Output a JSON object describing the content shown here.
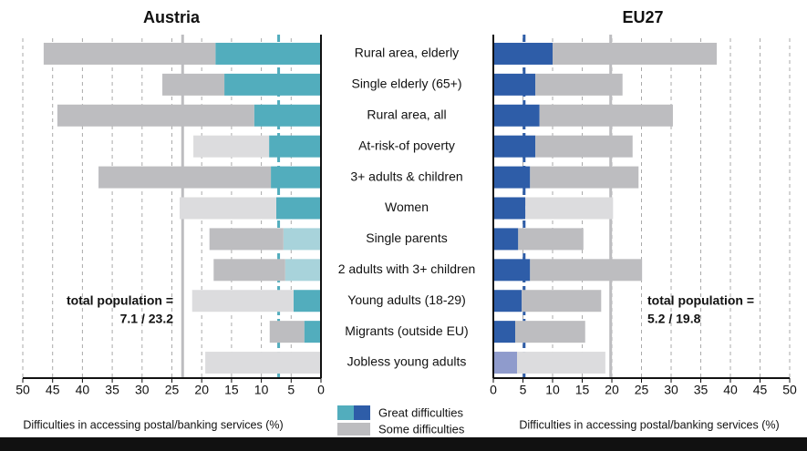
{
  "chart_data": [
    {
      "type": "bar",
      "orientation": "horizontal",
      "stacked": true,
      "title": "Austria",
      "x_reversed": true,
      "xlabel": "Difficulties in accessing postal/banking services (%)",
      "categories": [
        "Rural area, elderly",
        "Single elderly (65+)",
        "Rural area, all",
        "At-risk-of poverty",
        "3+ adults & children",
        "Women",
        "Single parents",
        "2 adults with 3+ children",
        "Young adults (18-29)",
        "Migrants (outside EU)",
        "Jobless young adults"
      ],
      "series": [
        {
          "name": "Great difficulties",
          "color": "#52adbd",
          "colors": [
            "#52adbd",
            "#52adbd",
            "#52adbd",
            "#52adbd",
            "#52adbd",
            "#52adbd",
            "#a8d3db",
            "#a8d3db",
            "#52adbd",
            "#52adbd",
            "#52adbd"
          ],
          "values": [
            17.7,
            16.2,
            11.2,
            8.7,
            8.4,
            7.5,
            6.3,
            6.0,
            4.6,
            2.8,
            0
          ]
        },
        {
          "name": "Some difficulties",
          "color": "#bdbdc0",
          "colors": [
            "#bdbdc0",
            "#bdbdc0",
            "#bdbdc0",
            "#dcdcde",
            "#bdbdc0",
            "#dcdcde",
            "#bdbdc0",
            "#bdbdc0",
            "#dcdcde",
            "#bdbdc0",
            "#dcdcde"
          ],
          "values": [
            28.8,
            10.4,
            33.0,
            12.7,
            28.9,
            16.2,
            12.4,
            12.0,
            17.0,
            5.8,
            19.4
          ]
        }
      ],
      "reference_lines": [
        {
          "value": 7.1,
          "color": "#52adbd",
          "dashed": true
        },
        {
          "value": 23.2,
          "color": "#bdbdc0",
          "dashed": false
        }
      ],
      "annotation": [
        "total population =",
        "7.1 / 23.2"
      ],
      "annotation_color": "#52adbd",
      "xlim": [
        0,
        50
      ],
      "xticks": [
        0,
        5,
        10,
        15,
        20,
        25,
        30,
        35,
        40,
        45,
        50
      ],
      "grid": true
    },
    {
      "type": "bar",
      "orientation": "horizontal",
      "stacked": true,
      "title": "EU27",
      "x_reversed": false,
      "xlabel": "Difficulties in accessing postal/banking services (%)",
      "series": [
        {
          "name": "Great difficulties",
          "color": "#2e5da8",
          "colors": [
            "#2e5da8",
            "#2e5da8",
            "#2e5da8",
            "#2e5da8",
            "#2e5da8",
            "#2e5da8",
            "#2e5da8",
            "#2e5da8",
            "#2e5da8",
            "#2e5da8",
            "#8f9bcc"
          ],
          "values": [
            10.0,
            7.1,
            7.8,
            7.1,
            6.2,
            5.4,
            4.2,
            6.2,
            4.8,
            3.7,
            4.0
          ]
        },
        {
          "name": "Some difficulties",
          "color": "#bdbdc0",
          "colors": [
            "#bdbdc0",
            "#bdbdc0",
            "#bdbdc0",
            "#bdbdc0",
            "#bdbdc0",
            "#dcdcde",
            "#bdbdc0",
            "#bdbdc0",
            "#bdbdc0",
            "#bdbdc0",
            "#dcdcde"
          ],
          "values": [
            27.7,
            14.7,
            22.5,
            16.4,
            18.3,
            14.8,
            11.0,
            18.9,
            13.4,
            11.8,
            14.9
          ]
        }
      ],
      "reference_lines": [
        {
          "value": 5.2,
          "color": "#2e5da8",
          "dashed": true
        },
        {
          "value": 19.8,
          "color": "#bdbdc0",
          "dashed": false
        }
      ],
      "annotation": [
        "total population =",
        "5.2 / 19.8"
      ],
      "annotation_color": "#2e5da8",
      "xlim": [
        0,
        50
      ],
      "xticks": [
        0,
        5,
        10,
        15,
        20,
        25,
        30,
        35,
        40,
        45,
        50
      ],
      "grid": true
    }
  ]
}
